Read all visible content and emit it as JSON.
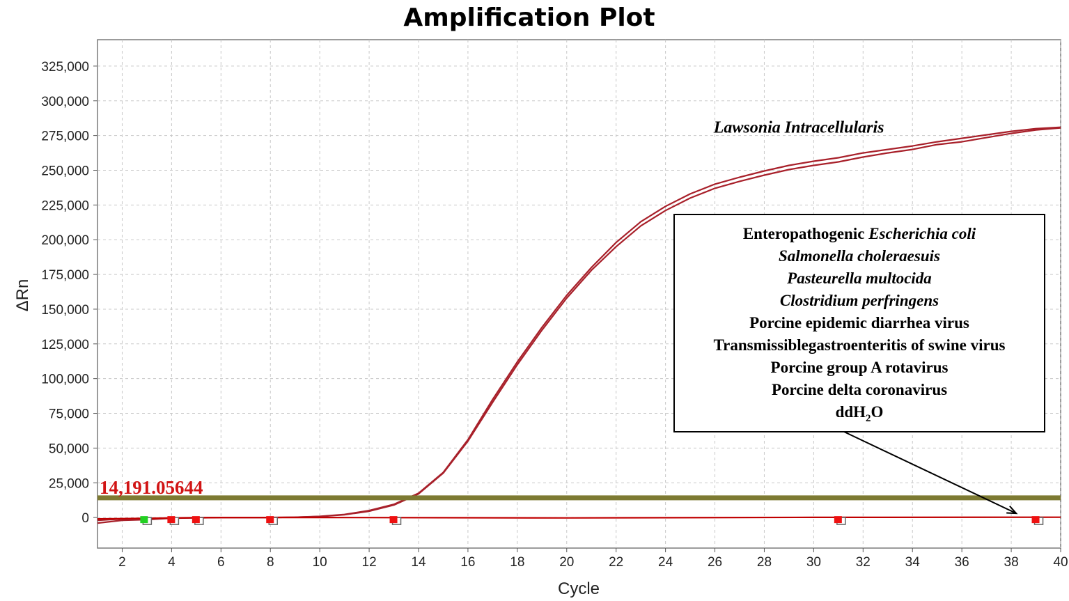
{
  "chart_data": {
    "type": "line",
    "title": "Amplification Plot",
    "xlabel": "Cycle",
    "ylabel": "ΔRn",
    "xlim": [
      1,
      40
    ],
    "ylim": [
      -22000,
      344000
    ],
    "grid": true,
    "x_ticks": [
      2,
      4,
      6,
      8,
      10,
      12,
      14,
      16,
      18,
      20,
      22,
      24,
      26,
      28,
      30,
      32,
      34,
      36,
      38,
      40
    ],
    "y_ticks": [
      0,
      25000,
      50000,
      75000,
      100000,
      125000,
      150000,
      175000,
      200000,
      225000,
      250000,
      275000,
      300000,
      325000
    ],
    "y_tick_labels": [
      "0",
      "25,000",
      "50,000",
      "75,000",
      "100,000",
      "125,000",
      "150,000",
      "175,000",
      "200,000",
      "225,000",
      "250,000",
      "275,000",
      "300,000",
      "325,000"
    ],
    "threshold": {
      "value": 14191.05644,
      "label": "14,191.05644",
      "color": "#7d7a32"
    },
    "series": [
      {
        "name": "Lawsonia Intracellularis",
        "color": "#a8202a",
        "x": [
          1,
          2,
          3,
          4,
          6,
          8,
          9,
          10,
          11,
          12,
          13,
          14,
          15,
          16,
          17,
          18,
          19,
          20,
          21,
          22,
          23,
          24,
          25,
          26,
          27,
          28,
          29,
          30,
          31,
          32,
          33,
          34,
          35,
          36,
          37,
          38,
          39,
          40
        ],
        "values": [
          -4000,
          -2000,
          -1500,
          -500,
          0,
          0,
          200,
          700,
          2000,
          4500,
          9000,
          17000,
          32000,
          55000,
          83000,
          110000,
          135000,
          158000,
          178000,
          195000,
          210000,
          221000,
          230000,
          237000,
          242000,
          246500,
          250500,
          253500,
          256000,
          259500,
          262500,
          265000,
          268500,
          270500,
          273500,
          276500,
          279000,
          280500
        ]
      },
      {
        "name": "",
        "color": "#a8202a",
        "x": [
          1,
          2,
          3,
          4,
          6,
          8,
          9,
          10,
          11,
          12,
          13,
          14,
          15,
          16,
          17,
          18,
          19,
          20,
          21,
          22,
          23,
          24,
          25,
          26,
          27,
          28,
          29,
          30,
          31,
          32,
          33,
          34,
          35,
          36,
          37,
          38,
          39,
          40
        ],
        "values": [
          -2000,
          -1000,
          -1000,
          -300,
          0,
          0,
          200,
          800,
          2200,
          5000,
          9500,
          17500,
          32500,
          56000,
          85000,
          112000,
          137000,
          160000,
          180000,
          198000,
          213000,
          224000,
          233000,
          240000,
          245000,
          249500,
          253500,
          256500,
          259000,
          262500,
          265000,
          267500,
          270500,
          273000,
          275500,
          278000,
          280000,
          281000
        ]
      },
      {
        "name": "",
        "color": "#c00000",
        "x": [
          1,
          2,
          4,
          6,
          10,
          20,
          30,
          40
        ],
        "values": [
          -1000,
          -800,
          -300,
          0,
          0,
          -300,
          100,
          200
        ]
      }
    ],
    "line_labels": [
      {
        "text": "Lawsonia Intracellularis",
        "x": 29.4,
        "y": 277000
      }
    ],
    "markers": [
      {
        "x": 2.9,
        "color": "#22d022",
        "offset_color": "#666666"
      },
      {
        "x": 4.0,
        "color": "#ee1111",
        "offset_color": "#666666"
      },
      {
        "x": 5.0,
        "color": "#ee1111",
        "offset_color": "#666666"
      },
      {
        "x": 8.0,
        "color": "#ee1111",
        "offset_color": "#666666"
      },
      {
        "x": 13.0,
        "color": "#ee1111",
        "offset_color": "#666666"
      },
      {
        "x": 31.0,
        "color": "#ee1111",
        "offset_color": "#666666"
      },
      {
        "x": 39.0,
        "color": "#ee1111",
        "offset_color": "#666666"
      }
    ],
    "annotation_box": {
      "lines": [
        {
          "parts": [
            {
              "text": "Enteropathogenic ",
              "italic": false
            },
            {
              "text": "Escherichia coli",
              "italic": true
            }
          ]
        },
        {
          "parts": [
            {
              "text": "Salmonella choleraesuis",
              "italic": true
            }
          ]
        },
        {
          "parts": [
            {
              "text": "Pasteurella multocida",
              "italic": true
            }
          ]
        },
        {
          "parts": [
            {
              "text": "Clostridium perfringens",
              "italic": true
            }
          ]
        },
        {
          "parts": [
            {
              "text": "Porcine epidemic diarrhea  virus",
              "italic": false
            }
          ]
        },
        {
          "parts": [
            {
              "text": "Transmissiblegastroenteritis  of swine virus",
              "italic": false
            }
          ]
        },
        {
          "parts": [
            {
              "text": "Porcine group A rotavirus",
              "italic": false
            }
          ]
        },
        {
          "parts": [
            {
              "text": "Porcine delta coronavirus",
              "italic": false
            }
          ]
        },
        {
          "parts": [
            {
              "text": "ddH",
              "italic": false
            },
            {
              "text": "2",
              "italic": false,
              "sub": true
            },
            {
              "text": "O",
              "italic": false
            }
          ]
        }
      ],
      "arrow_target": {
        "x": 38.2,
        "y": 1500
      }
    }
  }
}
